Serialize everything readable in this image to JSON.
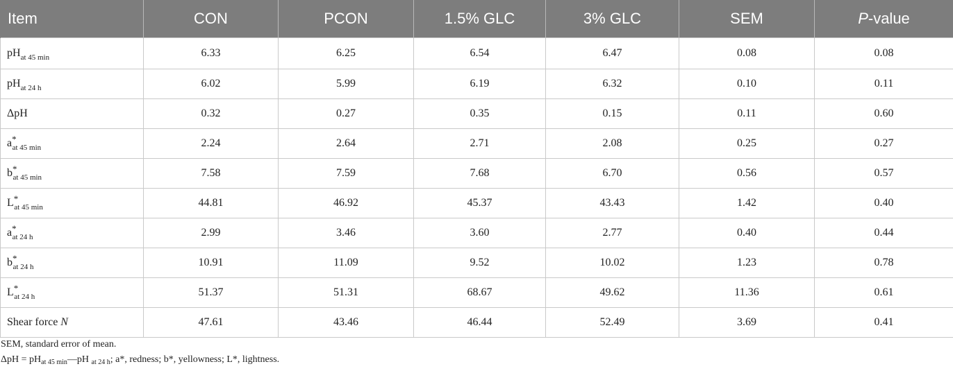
{
  "table": {
    "headers": {
      "item": "Item",
      "con": "CON",
      "pcon": "PCON",
      "glc15": "1.5% GLC",
      "glc3": "3% GLC",
      "sem": "SEM",
      "p_italic": "P",
      "p_rest": "-value"
    },
    "rows": [
      {
        "base": "pH",
        "sub": "at 45 min",
        "values": [
          "6.33",
          "6.25",
          "6.54",
          "6.47",
          "0.08",
          "0.08"
        ]
      },
      {
        "base": "pH",
        "sub": "at 24 h",
        "values": [
          "6.02",
          "5.99",
          "6.19",
          "6.32",
          "0.10",
          "0.11"
        ]
      },
      {
        "base": "ΔpH",
        "sub": "",
        "values": [
          "0.32",
          "0.27",
          "0.35",
          "0.15",
          "0.11",
          "0.60"
        ]
      },
      {
        "base": "a",
        "sup": "*",
        "sub": "at 45 min",
        "values": [
          "2.24",
          "2.64",
          "2.71",
          "2.08",
          "0.25",
          "0.27"
        ]
      },
      {
        "base": "b",
        "sup": "*",
        "sub": "at 45 min",
        "values": [
          "7.58",
          "7.59",
          "7.68",
          "6.70",
          "0.56",
          "0.57"
        ]
      },
      {
        "base": "L",
        "sup": "*",
        "sub": "at 45 min",
        "values": [
          "44.81",
          "46.92",
          "45.37",
          "43.43",
          "1.42",
          "0.40"
        ]
      },
      {
        "base": "a",
        "sup": "*",
        "sub": "at 24 h",
        "values": [
          "2.99",
          "3.46",
          "3.60",
          "2.77",
          "0.40",
          "0.44"
        ]
      },
      {
        "base": "b",
        "sup": "*",
        "sub": "at 24 h",
        "values": [
          "10.91",
          "11.09",
          "9.52",
          "10.02",
          "1.23",
          "0.78"
        ]
      },
      {
        "base": "L",
        "sup": "*",
        "sub": "at 24 h",
        "values": [
          "51.37",
          "51.31",
          "68.67",
          "49.62",
          "11.36",
          "0.61"
        ]
      },
      {
        "base": "Shear force ",
        "italic": "N",
        "sub": "",
        "values": [
          "47.61",
          "43.46",
          "46.44",
          "52.49",
          "3.69",
          "0.41"
        ]
      }
    ]
  },
  "footnotes": {
    "line1": "SEM, standard error of mean.",
    "line2": {
      "a": "ΔpH = pH",
      "a_sub": "at 45 min",
      "b": "—pH ",
      "b_sub": "at 24 h",
      "c": "; a*, redness; b*, yellowness; L*, lightness."
    }
  }
}
